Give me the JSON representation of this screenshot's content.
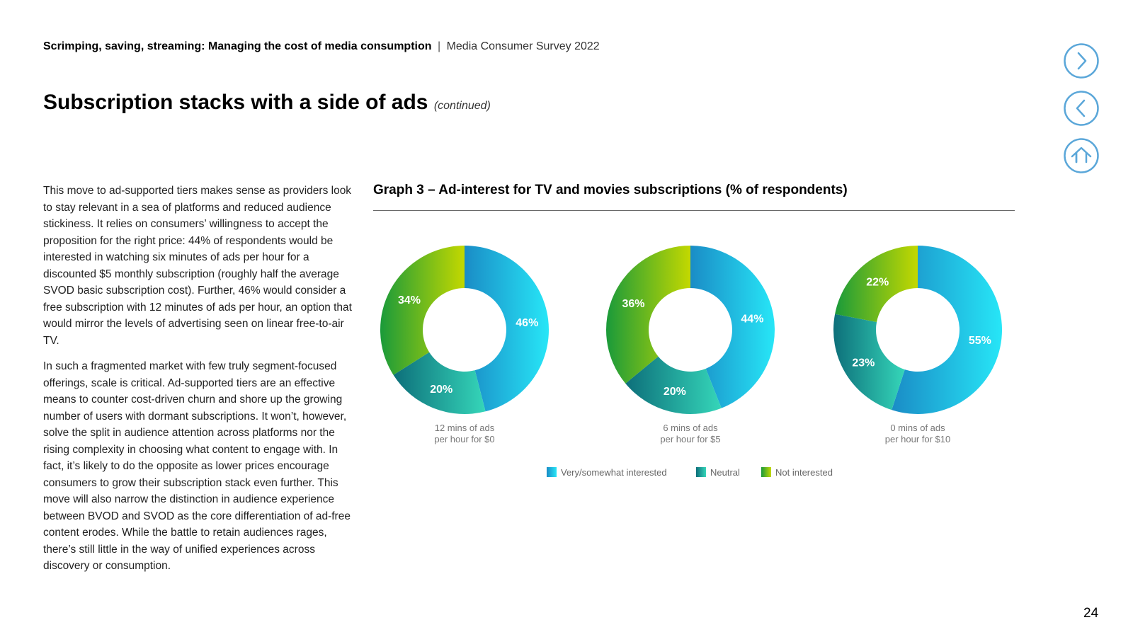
{
  "header": {
    "report_title": "Scrimping, saving, streaming: Managing the cost of media consumption",
    "separator": "|",
    "survey": "Media Consumer Survey 2022"
  },
  "page": {
    "title": "Subscription stacks with a side of ads",
    "continued": "(continued)",
    "number": "24"
  },
  "nav": {
    "next_icon": "chevron-right-icon",
    "prev_icon": "chevron-left-icon",
    "home_icon": "home-icon",
    "accent_color": "#5ba7d9"
  },
  "body": {
    "paragraphs": [
      "This move to ad-supported tiers makes sense as providers look to stay relevant in a sea of platforms and reduced audience stickiness. It relies on consumers’ willingness to accept the proposition for the right price: 44% of respondents would be interested in watching six minutes of ads per hour for a discounted $5 monthly subscription (roughly half the average SVOD basic subscription cost). Further, 46% would consider a free subscription with 12 minutes of ads per hour, an option that would mirror the levels of advertising seen on linear free-to-air TV.",
      "In such a fragmented market with few truly segment-focused offerings, scale is critical. Ad-supported tiers are an effective means to counter cost-driven churn and shore up the growing number of users with dormant subscriptions. It won’t, however, solve the split in audience attention across platforms nor the rising complexity in choosing what content to engage with. In fact, it’s likely to do the opposite as lower prices encourage consumers to grow their subscription stack even further. This move will also narrow the distinction in audience experience between BVOD and SVOD as the core differentiation of ad-free content erodes. While the battle to retain audiences rages, there’s still little in the way of unified experiences across discovery or consumption."
    ]
  },
  "chart_data": {
    "type": "pie",
    "variant": "donut",
    "title": "Graph 3 – Ad-interest for TV and movies subscriptions (% of respondents)",
    "legend": {
      "placement": "bottom-center",
      "entries": [
        "Very/somewhat interested",
        "Neutral",
        "Not interested"
      ]
    },
    "categories": [
      "Very/somewhat interested",
      "Neutral",
      "Not interested"
    ],
    "series_colors": {
      "Very/somewhat interested": [
        "#1a8cc6",
        "#27e6f7"
      ],
      "Neutral": [
        "#0d6f7a",
        "#35d6b9"
      ],
      "Not interested": [
        "#1a9a3a",
        "#c3d800"
      ]
    },
    "charts": [
      {
        "caption": [
          "12 mins of ads",
          "per hour for $0"
        ],
        "values": [
          46,
          20,
          34
        ],
        "labels": [
          "46%",
          "20%",
          "34%"
        ]
      },
      {
        "caption": [
          "6 mins of ads",
          "per hour for $5"
        ],
        "values": [
          44,
          20,
          36
        ],
        "labels": [
          "44%",
          "20%",
          "36%"
        ]
      },
      {
        "caption": [
          "0 mins of ads",
          "per hour for $10"
        ],
        "values": [
          55,
          23,
          22
        ],
        "labels": [
          "55%",
          "23%",
          "22%"
        ]
      }
    ]
  }
}
